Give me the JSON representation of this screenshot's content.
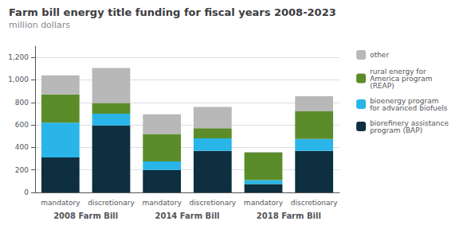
{
  "chart_data": {
    "type": "bar",
    "stacked": true,
    "title": "Farm bill energy title funding for fiscal years 2008-2023",
    "subtitle": "million dollars",
    "categories": [
      "mandatory",
      "discretionary",
      "mandatory",
      "discretionary",
      "mandatory",
      "discretionary"
    ],
    "group_labels": [
      "2008 Farm Bill",
      "2014 Farm Bill",
      "2018 Farm Bill"
    ],
    "series": [
      {
        "name": "biorefinery assistance\nprogram (BAP)",
        "color": "#0d2f3f",
        "values": [
          310,
          595,
          200,
          370,
          75,
          370
        ]
      },
      {
        "name": "bioenergy program\nfor advanced biofuels",
        "color": "#29b5e8",
        "values": [
          310,
          105,
          75,
          110,
          35,
          105
        ]
      },
      {
        "name": "rural energy for\nAmerica program\n(REAP)",
        "color": "#5b8c2a",
        "values": [
          250,
          95,
          245,
          90,
          245,
          245
        ]
      },
      {
        "name": "other",
        "color": "#b8b8b8",
        "values": [
          170,
          310,
          175,
          190,
          5,
          135
        ]
      }
    ],
    "ylim": [
      0,
      1300
    ],
    "yticks": [
      0,
      200,
      400,
      600,
      800,
      {
        "value": 1000,
        "label": "1,000"
      },
      {
        "value": 1200,
        "label": "1,200"
      }
    ],
    "grid": true,
    "legend": "right"
  }
}
